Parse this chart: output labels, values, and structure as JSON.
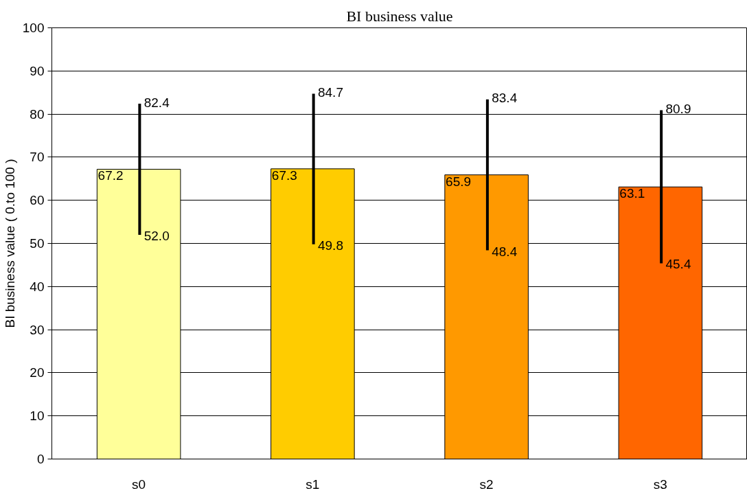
{
  "chart_data": {
    "type": "bar",
    "title": "BI business value",
    "ylabel": "BI business value ( 0.to 100 )",
    "categories": [
      "s0",
      "s1",
      "s2",
      "s3"
    ],
    "values": [
      67.2,
      67.3,
      65.9,
      63.1
    ],
    "colors": [
      "#ffff99",
      "#ffcc00",
      "#ff9900",
      "#ff6600"
    ],
    "errors": [
      [
        52.0,
        82.4
      ],
      [
        49.8,
        84.7
      ],
      [
        48.4,
        83.4
      ],
      [
        45.4,
        80.9
      ]
    ],
    "data_labels": true,
    "annotations": [
      {
        "text": "82.4",
        "x": "s0",
        "y": 82.4
      },
      {
        "text": "52.0",
        "x": "s0",
        "y": 52.0
      },
      {
        "text": "84.7",
        "x": "s1",
        "y": 84.7
      },
      {
        "text": "49.8",
        "x": "s1",
        "y": 49.8
      },
      {
        "text": "83.4",
        "x": "s2",
        "y": 83.4
      },
      {
        "text": "48.4",
        "x": "s2",
        "y": 48.4
      },
      {
        "text": "80.9",
        "x": "s3",
        "y": 80.9
      },
      {
        "text": "45.4",
        "x": "s3",
        "y": 45.4
      }
    ],
    "ylim": [
      0,
      100
    ],
    "yticks": [
      0,
      10,
      20,
      30,
      40,
      50,
      60,
      70,
      80,
      90,
      100
    ],
    "grid": "y"
  }
}
